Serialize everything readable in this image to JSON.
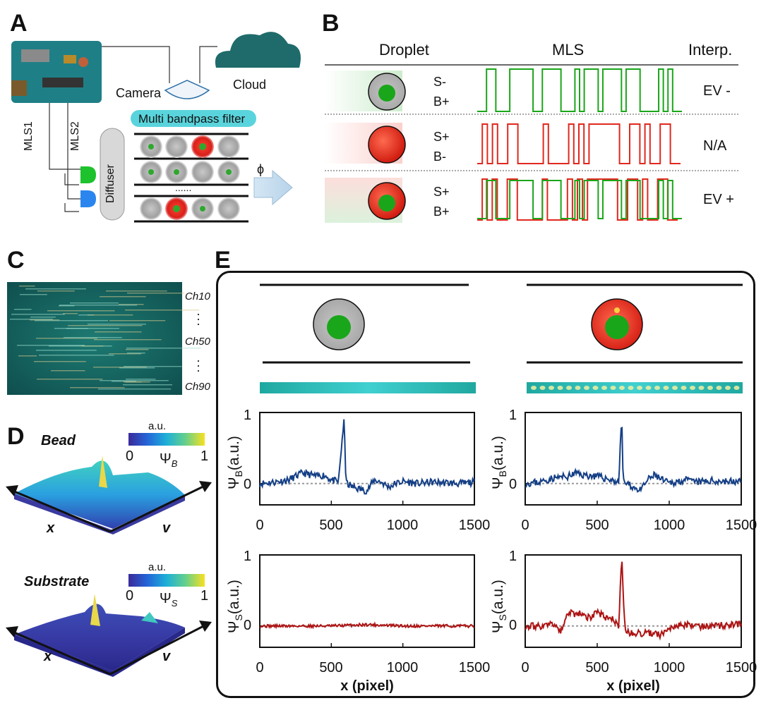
{
  "panels": {
    "A": "A",
    "B": "B",
    "C": "C",
    "D": "D",
    "E": "E"
  },
  "panelA": {
    "camera": "Camera",
    "cloud": "Cloud",
    "filter": "Multi bandpass filter",
    "mls1": "MLS1",
    "mls2": "MLS2",
    "diffuser": "Diffuser",
    "phi": "ϕ",
    "dots": "......"
  },
  "panelB": {
    "col_droplet": "Droplet",
    "col_mls": "MLS",
    "col_interp": "Interp.",
    "rows": [
      {
        "s": "S-",
        "b": "B+",
        "interp": "EV -"
      },
      {
        "s": "S+",
        "b": "B-",
        "interp": "N/A"
      },
      {
        "s": "S+",
        "b": "B+",
        "interp": "EV +"
      }
    ]
  },
  "panelC": {
    "ch_top": "Ch10",
    "ch_mid": "Ch50",
    "ch_bot": "Ch90"
  },
  "panelD": {
    "bead": {
      "title": "Bead",
      "unit": "a.u.",
      "min": "0",
      "max": "1",
      "psi": "Ψ",
      "sub": "B"
    },
    "substrate": {
      "title": "Substrate",
      "unit": "a.u.",
      "min": "0",
      "max": "1",
      "psi": "Ψ",
      "sub": "S"
    },
    "axis_x": "x",
    "axis_y": "v"
  },
  "panelE": {
    "ylab_b_psi": "Ψ",
    "ylab_b_sub": "B",
    "ylab_b_unit": "(a.u.)",
    "ylab_s_psi": "Ψ",
    "ylab_s_sub": "S",
    "ylab_s_unit": "(a.u.)",
    "y_top": "1",
    "y_zero": "0",
    "xticks": [
      "0",
      "500",
      "1000",
      "1500"
    ],
    "xlabel": "x (pixel)"
  },
  "colors": {
    "green": "#1aa61a",
    "red": "#e0281e",
    "navy": "#143f86",
    "dark_red": "#ad1414",
    "teal": "#1f6b6b"
  },
  "chart_data": [
    {
      "type": "line",
      "ylim": [
        -0.3,
        1
      ],
      "xlim": [
        0,
        1500
      ],
      "ylabel": "ΨB(a.u.)",
      "xticks": [
        0,
        500,
        1000,
        1500
      ],
      "series": [
        {
          "x": [
            0,
            100,
            200,
            250,
            300,
            400,
            450,
            500,
            550,
            590,
            600,
            610,
            650,
            700,
            750,
            800,
            850,
            900,
            950,
            1000,
            1100,
            1200,
            1300,
            1400,
            1500
          ],
          "values": [
            0,
            0.02,
            0.05,
            0.1,
            0.15,
            0.1,
            0.12,
            0.05,
            0.02,
            0.95,
            0.1,
            0.0,
            -0.05,
            -0.08,
            -0.1,
            0.05,
            0.02,
            -0.05,
            0.0,
            0.03,
            0.0,
            0.02,
            0.01,
            0.0,
            0.02
          ]
        }
      ]
    },
    {
      "type": "line",
      "ylim": [
        -0.3,
        1
      ],
      "xlim": [
        0,
        1500
      ],
      "ylabel": "ΨB(a.u.)",
      "xticks": [
        0,
        500,
        1000,
        1500
      ],
      "series": [
        {
          "x": [
            0,
            100,
            200,
            300,
            350,
            400,
            500,
            600,
            650,
            670,
            680,
            700,
            750,
            800,
            850,
            900,
            950,
            1000,
            1100,
            1200,
            1300,
            1400,
            1500
          ],
          "values": [
            0,
            0.02,
            0.08,
            0.1,
            0.15,
            0.12,
            0.1,
            0.05,
            0.02,
            0.97,
            0.05,
            0.0,
            -0.05,
            -0.1,
            0.05,
            0.12,
            0.05,
            0.0,
            0.05,
            0.02,
            0.04,
            0.03,
            0.02
          ]
        }
      ]
    },
    {
      "type": "line",
      "ylim": [
        -0.3,
        1
      ],
      "xlim": [
        0,
        1500
      ],
      "ylabel": "ΨS(a.u.)",
      "xlabel": "x (pixel)",
      "xticks": [
        0,
        500,
        1000,
        1500
      ],
      "series": [
        {
          "x": [
            0,
            250,
            500,
            750,
            1000,
            1250,
            1500
          ],
          "values": [
            0,
            0,
            0,
            0.02,
            0,
            0,
            0
          ]
        }
      ]
    },
    {
      "type": "line",
      "ylim": [
        -0.3,
        1
      ],
      "xlim": [
        0,
        1500
      ],
      "ylabel": "ΨS(a.u.)",
      "xlabel": "x (pixel)",
      "xticks": [
        0,
        500,
        1000,
        1500
      ],
      "series": [
        {
          "x": [
            0,
            100,
            200,
            250,
            300,
            350,
            400,
            450,
            500,
            550,
            600,
            650,
            670,
            690,
            700,
            750,
            800,
            850,
            900,
            950,
            1000,
            1050,
            1100,
            1200,
            1300,
            1500
          ],
          "values": [
            0,
            0,
            0.02,
            -0.08,
            0.2,
            0.15,
            0.18,
            0.1,
            0.2,
            0.12,
            0.1,
            0.0,
            1.0,
            0.05,
            -0.1,
            -0.1,
            -0.1,
            -0.1,
            -0.12,
            -0.12,
            -0.02,
            0.0,
            0.02,
            0.0,
            0.0,
            0.02
          ]
        }
      ]
    }
  ]
}
